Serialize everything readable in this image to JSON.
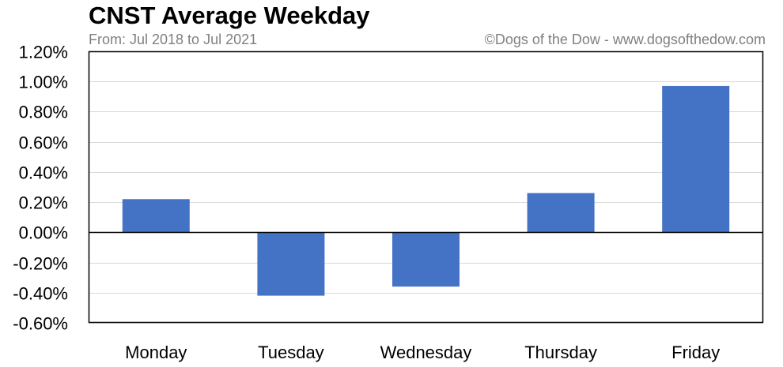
{
  "header": {
    "title": "CNST Average Weekday",
    "subtitle": "From: Jul 2018 to Jul 2021",
    "credit": "©Dogs of the Dow - www.dogsofthedow.com"
  },
  "colors": {
    "bar": "#4472C4",
    "grid": "#D9D9D9",
    "axis": "#000000"
  },
  "chart_data": {
    "type": "bar",
    "title": "CNST Average Weekday",
    "subtitle": "From: Jul 2018 to Jul 2021",
    "categories": [
      "Monday",
      "Tuesday",
      "Wednesday",
      "Thursday",
      "Friday"
    ],
    "values": [
      0.22,
      -0.42,
      -0.36,
      0.26,
      0.97
    ],
    "value_unit": "%",
    "ylim": [
      -0.6,
      1.2
    ],
    "yticks": [
      -0.6,
      -0.4,
      -0.2,
      0.0,
      0.2,
      0.4,
      0.6,
      0.8,
      1.0,
      1.2
    ],
    "ytick_labels": [
      "-0.60%",
      "-0.40%",
      "-0.20%",
      "0.00%",
      "0.20%",
      "0.40%",
      "0.60%",
      "0.80%",
      "1.00%",
      "1.20%"
    ],
    "grid": true,
    "legend": "none",
    "xlabel": "",
    "ylabel": ""
  }
}
